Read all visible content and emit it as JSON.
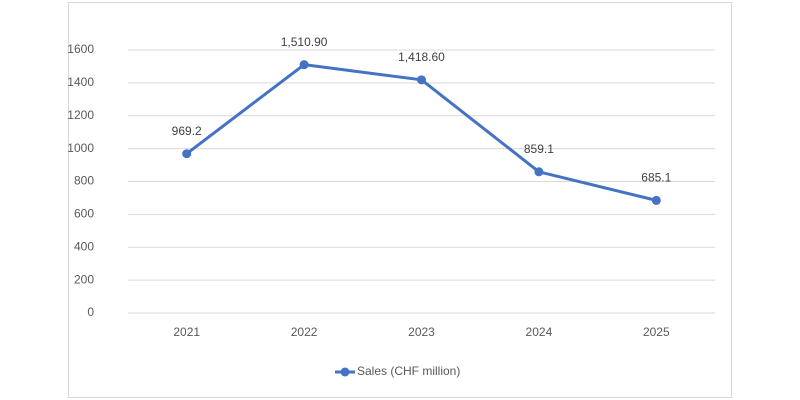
{
  "chart_data": {
    "type": "line",
    "categories": [
      "2021",
      "2022",
      "2023",
      "2024",
      "2025"
    ],
    "series": [
      {
        "name": "Sales (CHF million)",
        "color": "#4472c4",
        "values": [
          969.2,
          1510.9,
          1418.6,
          859.1,
          685.1
        ],
        "value_labels": [
          "969.2",
          "1,510.90",
          "1,418.60",
          "859.1",
          "685.1"
        ]
      }
    ],
    "ylim": [
      0,
      1600
    ],
    "yticks": [
      0,
      200,
      400,
      600,
      800,
      1000,
      1200,
      1400,
      1600
    ],
    "grid": true,
    "legend": "bottom"
  }
}
